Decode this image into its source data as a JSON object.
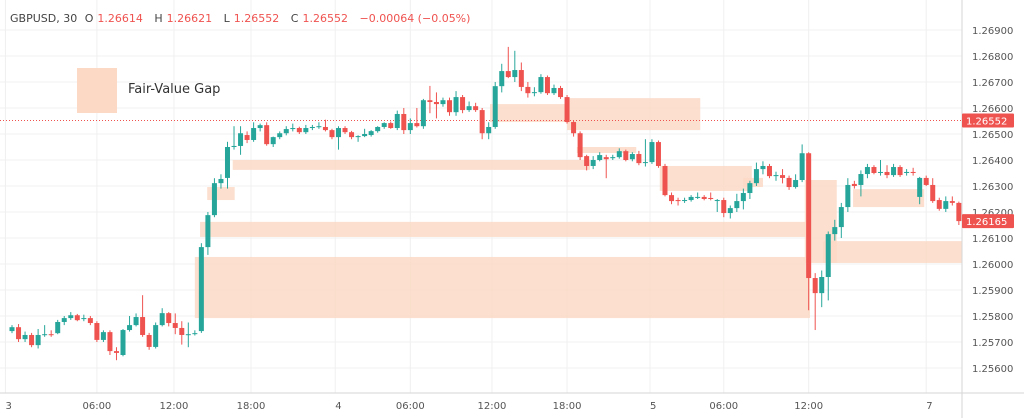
{
  "header": {
    "symbol": "GBPUSD, 30",
    "open_label": "O",
    "open": "1.26614",
    "high_label": "H",
    "high": "1.26621",
    "low_label": "L",
    "low": "1.26552",
    "close_label": "C",
    "close": "1.26552",
    "change": "−0.00064 (−0.05%)"
  },
  "legend": {
    "label": "Fair-Value Gap"
  },
  "colors": {
    "up": "#26a69a",
    "down": "#ef5350",
    "zone": "#fcd9c5",
    "grid": "#f0f0f0",
    "axis_text": "#555555"
  },
  "chart_data": {
    "type": "candlestick",
    "title": "GBPUSD, 30",
    "ylim": [
      1.2551,
      1.2703
    ],
    "grid": true,
    "y_ticks": [
      "1.26900",
      "1.26800",
      "1.26700",
      "1.26600",
      "1.26500",
      "1.26400",
      "1.26300",
      "1.26200",
      "1.26100",
      "1.26000",
      "1.25900",
      "1.25800",
      "1.25700",
      "1.25600"
    ],
    "x_ticks": [
      {
        "label": "3",
        "bar": -1
      },
      {
        "label": "06:00",
        "bar": 13
      },
      {
        "label": "12:00",
        "bar": 24.8
      },
      {
        "label": "18:00",
        "bar": 36.6
      },
      {
        "label": "4",
        "bar": 49.5
      },
      {
        "label": "06:00",
        "bar": 61
      },
      {
        "label": "12:00",
        "bar": 73.5
      },
      {
        "label": "18:00",
        "bar": 85
      },
      {
        "label": "5",
        "bar": 97.7
      },
      {
        "label": "06:00",
        "bar": 109
      },
      {
        "label": "12:00",
        "bar": 122
      },
      {
        "label": "7",
        "bar": 140
      }
    ],
    "price_lines": [
      {
        "value": 1.26552,
        "label": "1.26552",
        "dotted": true
      },
      {
        "value": 1.26165,
        "label": "1.26165",
        "dotted": false
      }
    ],
    "ohlc_fields": [
      "open",
      "high",
      "low",
      "close"
    ],
    "candles": [
      [
        1.25742,
        1.25765,
        1.25734,
        1.25757
      ],
      [
        1.25757,
        1.25769,
        1.257,
        1.25711
      ],
      [
        1.25711,
        1.2574,
        1.257,
        1.25727
      ],
      [
        1.25727,
        1.25735,
        1.2568,
        1.25688
      ],
      [
        1.25688,
        1.2575,
        1.25675,
        1.25727
      ],
      [
        1.25727,
        1.25765,
        1.2572,
        1.2573
      ],
      [
        1.2573,
        1.25745,
        1.2572,
        1.25727
      ],
      [
        1.25734,
        1.25785,
        1.2573,
        1.25777
      ],
      [
        1.25777,
        1.258,
        1.25765,
        1.25792
      ],
      [
        1.25792,
        1.25815,
        1.25785,
        1.25803
      ],
      [
        1.25803,
        1.25808,
        1.2578,
        1.25784
      ],
      [
        1.2579,
        1.25805,
        1.2578,
        1.25792
      ],
      [
        1.25792,
        1.258,
        1.25765,
        1.25773
      ],
      [
        1.25773,
        1.2578,
        1.257,
        1.25708
      ],
      [
        1.25708,
        1.25745,
        1.257,
        1.25738
      ],
      [
        1.25738,
        1.25745,
        1.2565,
        1.25665
      ],
      [
        1.25665,
        1.2568,
        1.2563,
        1.25658
      ],
      [
        1.2565,
        1.2575,
        1.25645,
        1.25746
      ],
      [
        1.25746,
        1.258,
        1.2574,
        1.25765
      ],
      [
        1.25765,
        1.2581,
        1.2576,
        1.25796
      ],
      [
        1.25796,
        1.2588,
        1.2572,
        1.25727
      ],
      [
        1.25727,
        1.25735,
        1.2567,
        1.25681
      ],
      [
        1.25681,
        1.25775,
        1.25675,
        1.25765
      ],
      [
        1.25765,
        1.2583,
        1.2576,
        1.25811
      ],
      [
        1.25811,
        1.25815,
        1.2576,
        1.25773
      ],
      [
        1.25773,
        1.2581,
        1.2573,
        1.25754
      ],
      [
        1.25754,
        1.2578,
        1.2569,
        1.25727
      ],
      [
        1.25727,
        1.25775,
        1.2568,
        1.2573
      ],
      [
        1.25731,
        1.25745,
        1.25725,
        1.25734
      ],
      [
        1.25742,
        1.2608,
        1.25735,
        1.26065
      ],
      [
        1.26065,
        1.262,
        1.26035,
        1.26188
      ],
      [
        1.26188,
        1.2633,
        1.2618,
        1.26311
      ],
      [
        1.26311,
        1.26345,
        1.2629,
        1.26327
      ],
      [
        1.26331,
        1.2647,
        1.2629,
        1.2645
      ],
      [
        1.2645,
        1.2653,
        1.2644,
        1.26454
      ],
      [
        1.26454,
        1.2653,
        1.2642,
        1.26503
      ],
      [
        1.26496,
        1.2651,
        1.26465,
        1.26477
      ],
      [
        1.26477,
        1.26545,
        1.2647,
        1.26523
      ],
      [
        1.26523,
        1.2654,
        1.2651,
        1.26534
      ],
      [
        1.26534,
        1.26545,
        1.26455,
        1.26461
      ],
      [
        1.26461,
        1.2649,
        1.2645,
        1.26488
      ],
      [
        1.26488,
        1.2651,
        1.2648,
        1.26503
      ],
      [
        1.26503,
        1.2653,
        1.26495,
        1.26519
      ],
      [
        1.26519,
        1.2654,
        1.2651,
        1.26523
      ],
      [
        1.26523,
        1.26528,
        1.265,
        1.26507
      ],
      [
        1.26507,
        1.26535,
        1.265,
        1.26523
      ],
      [
        1.26523,
        1.26535,
        1.26515,
        1.26527
      ],
      [
        1.26527,
        1.26545,
        1.2652,
        1.2653
      ],
      [
        1.26527,
        1.26555,
        1.2651,
        1.26515
      ],
      [
        1.26515,
        1.2652,
        1.2648,
        1.26488
      ],
      [
        1.26488,
        1.2653,
        1.2644,
        1.26523
      ],
      [
        1.26523,
        1.2653,
        1.265,
        1.26507
      ],
      [
        1.26507,
        1.26512,
        1.2648,
        1.26488
      ],
      [
        1.26488,
        1.26495,
        1.2647,
        1.26492
      ],
      [
        1.26492,
        1.2652,
        1.26488,
        1.265
      ],
      [
        1.26496,
        1.26515,
        1.2649,
        1.26511
      ],
      [
        1.26511,
        1.2653,
        1.26505,
        1.26527
      ],
      [
        1.26527,
        1.26545,
        1.2652,
        1.26542
      ],
      [
        1.26542,
        1.26548,
        1.2652,
        1.26523
      ],
      [
        1.26523,
        1.2659,
        1.26515,
        1.26577
      ],
      [
        1.26577,
        1.266,
        1.265,
        1.26515
      ],
      [
        1.26515,
        1.2656,
        1.265,
        1.26542
      ],
      [
        1.26542,
        1.266,
        1.26525,
        1.2653
      ],
      [
        1.2653,
        1.26635,
        1.2652,
        1.2663
      ],
      [
        1.2663,
        1.26685,
        1.2658,
        1.26623
      ],
      [
        1.26623,
        1.2666,
        1.2656,
        1.26615
      ],
      [
        1.26615,
        1.2664,
        1.26605,
        1.2663
      ],
      [
        1.2663,
        1.2664,
        1.2657,
        1.26584
      ],
      [
        1.26584,
        1.26665,
        1.2657,
        1.26642
      ],
      [
        1.26642,
        1.2665,
        1.2658,
        1.26592
      ],
      [
        1.26592,
        1.26625,
        1.26585,
        1.26607
      ],
      [
        1.26607,
        1.2662,
        1.26585,
        1.26592
      ],
      [
        1.26592,
        1.266,
        1.2648,
        1.26503
      ],
      [
        1.26503,
        1.26545,
        1.2648,
        1.26527
      ],
      [
        1.26527,
        1.267,
        1.2652,
        1.26684
      ],
      [
        1.26684,
        1.2677,
        1.2666,
        1.26742
      ],
      [
        1.26742,
        1.26835,
        1.26715,
        1.26719
      ],
      [
        1.26719,
        1.2682,
        1.267,
        1.26746
      ],
      [
        1.26746,
        1.26775,
        1.26665,
        1.26681
      ],
      [
        1.26681,
        1.267,
        1.2664,
        1.26657
      ],
      [
        1.26661,
        1.2668,
        1.26645,
        1.26661
      ],
      [
        1.26661,
        1.2673,
        1.26655,
        1.26719
      ],
      [
        1.26719,
        1.26725,
        1.2665,
        1.26657
      ],
      [
        1.26657,
        1.2669,
        1.2665,
        1.26677
      ],
      [
        1.26677,
        1.26685,
        1.26635,
        1.26642
      ],
      [
        1.26642,
        1.2665,
        1.2654,
        1.26546
      ],
      [
        1.26546,
        1.2655,
        1.2649,
        1.26503
      ],
      [
        1.26503,
        1.2651,
        1.264,
        1.26411
      ],
      [
        1.26415,
        1.2642,
        1.2636,
        1.26377
      ],
      [
        1.26377,
        1.26415,
        1.26365,
        1.264
      ],
      [
        1.264,
        1.2643,
        1.26395,
        1.26419
      ],
      [
        1.26411,
        1.2642,
        1.2633,
        1.26403
      ],
      [
        1.26407,
        1.2642,
        1.264,
        1.26411
      ],
      [
        1.26411,
        1.26445,
        1.26405,
        1.26434
      ],
      [
        1.26434,
        1.2644,
        1.26395,
        1.264
      ],
      [
        1.26403,
        1.2643,
        1.26395,
        1.26423
      ],
      [
        1.26423,
        1.26435,
        1.2638,
        1.26388
      ],
      [
        1.26392,
        1.2648,
        1.26375,
        1.26392
      ],
      [
        1.26392,
        1.2648,
        1.26385,
        1.26469
      ],
      [
        1.26469,
        1.26475,
        1.2637,
        1.26377
      ],
      [
        1.26377,
        1.26385,
        1.2626,
        1.26265
      ],
      [
        1.26265,
        1.26275,
        1.2623,
        1.26242
      ],
      [
        1.26246,
        1.26255,
        1.26225,
        1.26242
      ],
      [
        1.26246,
        1.26255,
        1.26235,
        1.26246
      ],
      [
        1.26246,
        1.26265,
        1.2624,
        1.26258
      ],
      [
        1.26258,
        1.26275,
        1.2625,
        1.26258
      ],
      [
        1.26258,
        1.26265,
        1.26245,
        1.2625
      ],
      [
        1.26254,
        1.26275,
        1.26245,
        1.2625
      ],
      [
        1.26246,
        1.2625,
        1.262,
        1.26246
      ],
      [
        1.26246,
        1.26255,
        1.2618,
        1.26196
      ],
      [
        1.26196,
        1.26225,
        1.26175,
        1.26215
      ],
      [
        1.26215,
        1.2627,
        1.262,
        1.26242
      ],
      [
        1.26242,
        1.2629,
        1.2621,
        1.26273
      ],
      [
        1.26273,
        1.2632,
        1.2625,
        1.26311
      ],
      [
        1.26311,
        1.2639,
        1.263,
        1.26365
      ],
      [
        1.26365,
        1.26395,
        1.26345,
        1.26377
      ],
      [
        1.26377,
        1.26385,
        1.2633,
        1.26338
      ],
      [
        1.26338,
        1.26355,
        1.2632,
        1.26342
      ],
      [
        1.26342,
        1.26365,
        1.2631,
        1.26331
      ],
      [
        1.26331,
        1.2634,
        1.26285,
        1.26296
      ],
      [
        1.26296,
        1.26345,
        1.2629,
        1.26323
      ],
      [
        1.26323,
        1.2646,
        1.26315,
        1.26426
      ],
      [
        1.26426,
        1.2643,
        1.25822,
        1.25946
      ],
      [
        1.25946,
        1.25965,
        1.25746,
        1.25888
      ],
      [
        1.25888,
        1.25975,
        1.25834,
        1.2595
      ],
      [
        1.2595,
        1.26125,
        1.2586,
        1.26115
      ],
      [
        1.26115,
        1.2617,
        1.2609,
        1.26142
      ],
      [
        1.26142,
        1.26235,
        1.261,
        1.26219
      ],
      [
        1.26219,
        1.2633,
        1.262,
        1.26304
      ],
      [
        1.26308,
        1.2632,
        1.2629,
        1.263
      ],
      [
        1.26304,
        1.2636,
        1.2626,
        1.26346
      ],
      [
        1.26346,
        1.26385,
        1.2633,
        1.26373
      ],
      [
        1.26373,
        1.2638,
        1.26345,
        1.2635
      ],
      [
        1.26354,
        1.264,
        1.2634,
        1.26354
      ],
      [
        1.26354,
        1.2638,
        1.2633,
        1.26342
      ],
      [
        1.26342,
        1.26385,
        1.26335,
        1.26373
      ],
      [
        1.26373,
        1.2638,
        1.26335,
        1.26342
      ],
      [
        1.2635,
        1.26365,
        1.2634,
        1.26354
      ],
      [
        1.26354,
        1.2637,
        1.2634,
        1.2635
      ],
      [
        1.26258,
        1.26335,
        1.2623,
        1.26331
      ],
      [
        1.26331,
        1.2634,
        1.263,
        1.26304
      ],
      [
        1.26304,
        1.2633,
        1.26235,
        1.26242
      ],
      [
        1.26246,
        1.26255,
        1.26205,
        1.26212
      ],
      [
        1.26212,
        1.2626,
        1.262,
        1.26242
      ],
      [
        1.26242,
        1.2626,
        1.26225,
        1.26235
      ],
      [
        1.26235,
        1.2624,
        1.2615,
        1.26165
      ]
    ],
    "fair_value_gaps": [
      {
        "start_bar": 29.9,
        "end_bar": 34.1,
        "top": 1.26296,
        "bottom": 1.26246
      },
      {
        "start_bar": 33.8,
        "end_bar": 88.5,
        "top": 1.264,
        "bottom": 1.26362
      },
      {
        "start_bar": 28.8,
        "end_bar": 122.2,
        "top": 1.26162,
        "bottom": 1.26104
      },
      {
        "start_bar": 28.0,
        "end_bar": 122.2,
        "top": 1.26027,
        "bottom": 1.25792
      },
      {
        "start_bar": 73.2,
        "end_bar": 85.3,
        "top": 1.26615,
        "bottom": 1.26546
      },
      {
        "start_bar": 85.0,
        "end_bar": 105.4,
        "top": 1.26638,
        "bottom": 1.26515
      },
      {
        "start_bar": 86.5,
        "end_bar": 95.6,
        "top": 1.2645,
        "bottom": 1.26427
      },
      {
        "start_bar": 99.2,
        "end_bar": 113.3,
        "top": 1.26377,
        "bottom": 1.26281
      },
      {
        "start_bar": 112.0,
        "end_bar": 115.0,
        "top": 1.26331,
        "bottom": 1.26296
      },
      {
        "start_bar": 121.4,
        "end_bar": 126.3,
        "top": 1.26323,
        "bottom": 1.26004
      },
      {
        "start_bar": 124.2,
        "end_bar": 145.5,
        "top": 1.26088,
        "bottom": 1.26004
      },
      {
        "start_bar": 128.8,
        "end_bar": 139.7,
        "top": 1.26288,
        "bottom": 1.26219
      }
    ]
  }
}
